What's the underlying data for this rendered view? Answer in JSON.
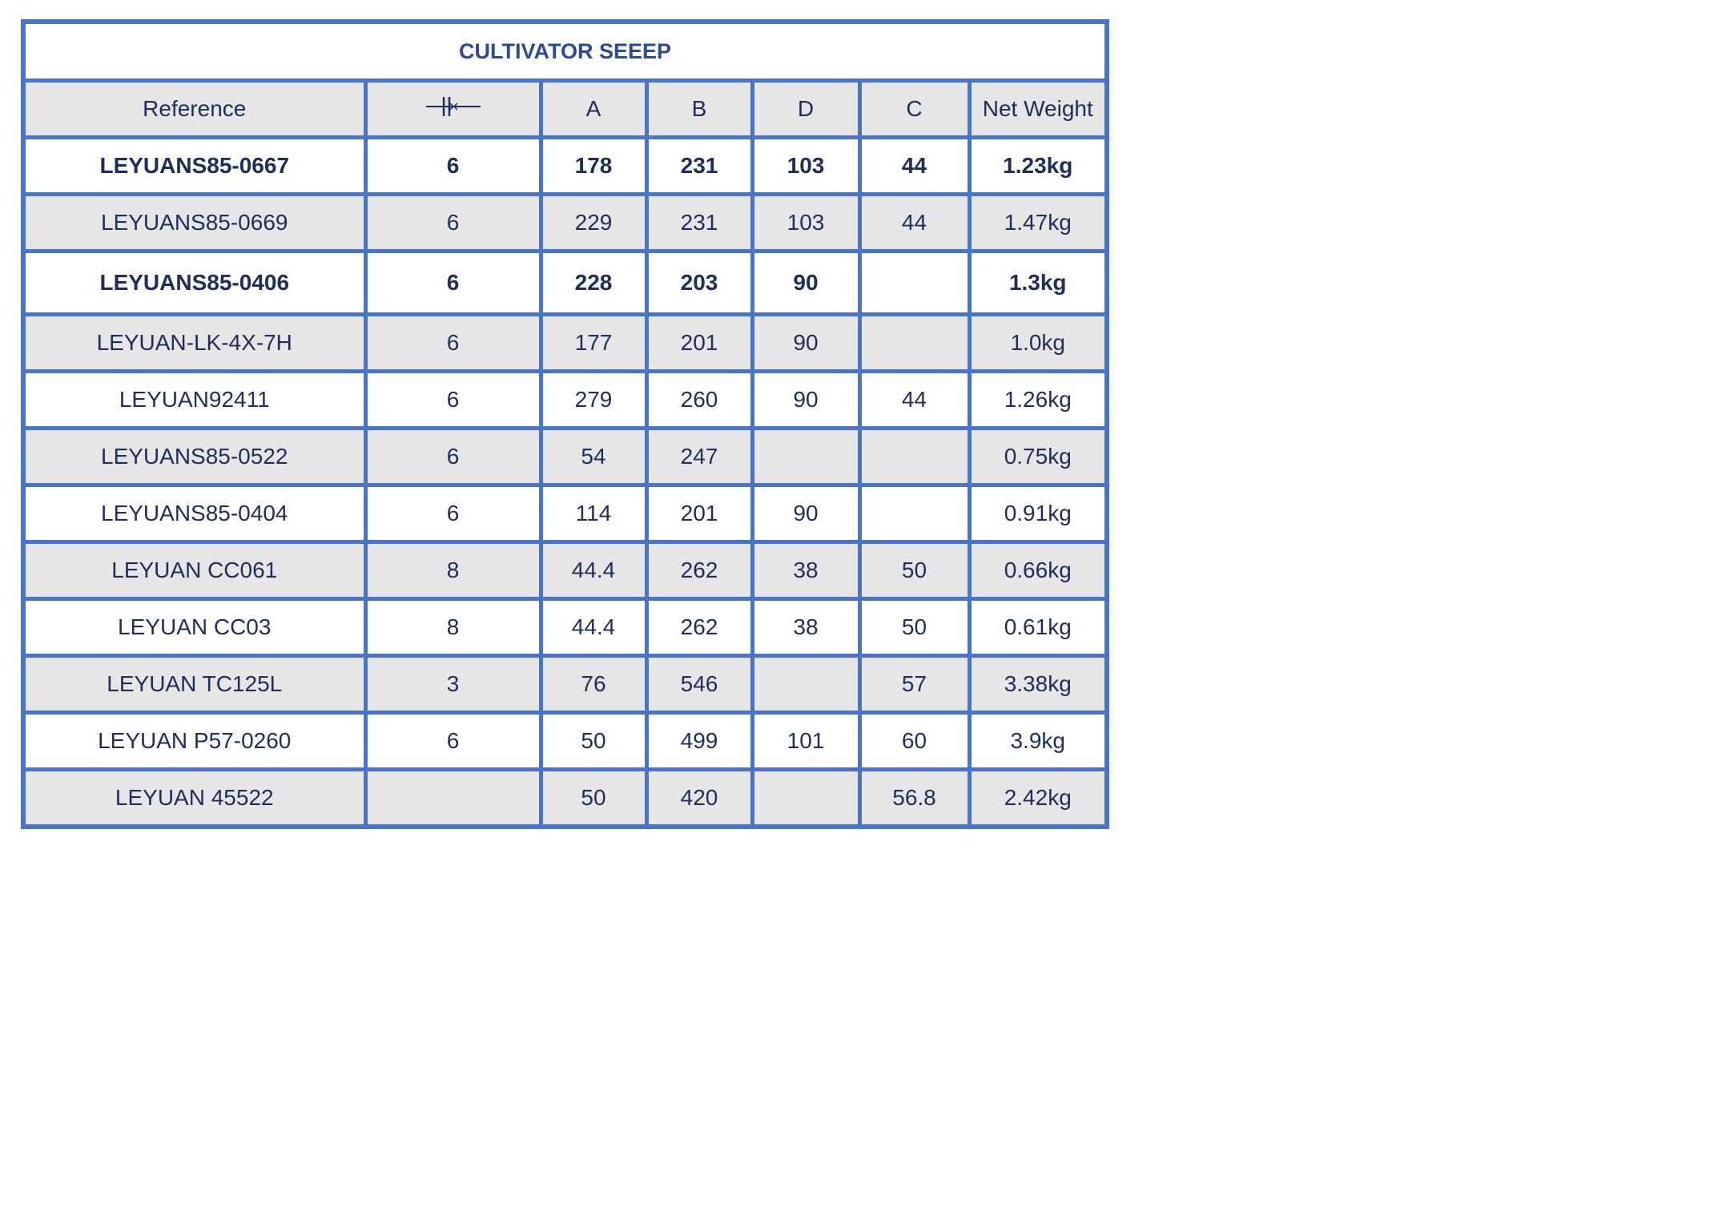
{
  "table": {
    "title": "CULTIVATOR SEEEP",
    "headers": [
      "Reference",
      "",
      "A",
      "B",
      "D",
      "C",
      "Net Weight"
    ],
    "header_icons": {
      "1": "flange-spacing-icon"
    },
    "border_color": "#4a74c9",
    "stripe_color": "#e6e6e6",
    "text_color": "#1f2d5a",
    "rows": [
      {
        "bold": true,
        "cells": [
          "LEYUANS85-0667",
          "6",
          "178",
          "231",
          "103",
          "44",
          "1.23kg"
        ]
      },
      {
        "bold": false,
        "cells": [
          "LEYUANS85-0669",
          "6",
          "229",
          "231",
          "103",
          "44",
          "1.47kg"
        ]
      },
      {
        "bold": true,
        "cells": [
          "LEYUANS85-0406",
          "6",
          "228",
          "203",
          "90",
          "",
          "1.3kg"
        ]
      },
      {
        "bold": false,
        "cells": [
          "LEYUAN-LK-4X-7H",
          "6",
          "177",
          "201",
          "90",
          "",
          "1.0kg"
        ]
      },
      {
        "bold": false,
        "cells": [
          "LEYUAN92411",
          "6",
          "279",
          "260",
          "90",
          "44",
          "1.26kg"
        ]
      },
      {
        "bold": false,
        "cells": [
          "LEYUANS85-0522",
          "6",
          "54",
          "247",
          "",
          "",
          "0.75kg"
        ]
      },
      {
        "bold": false,
        "cells": [
          "LEYUANS85-0404",
          "6",
          "114",
          "201",
          "90",
          "",
          "0.91kg"
        ]
      },
      {
        "bold": false,
        "cells": [
          "LEYUAN CC061",
          "8",
          "44.4",
          "262",
          "38",
          "50",
          "0.66kg"
        ]
      },
      {
        "bold": false,
        "cells": [
          "LEYUAN CC03",
          "8",
          "44.4",
          "262",
          "38",
          "50",
          "0.61kg"
        ]
      },
      {
        "bold": false,
        "cells": [
          "LEYUAN TC125L",
          "3",
          "76",
          "546",
          "",
          "57",
          "3.38kg"
        ]
      },
      {
        "bold": false,
        "cells": [
          "LEYUAN P57-0260",
          "6",
          "50",
          "499",
          "101",
          "60",
          "3.9kg"
        ]
      },
      {
        "bold": false,
        "cells": [
          "LEYUAN 45522",
          "",
          "50",
          "420",
          "",
          "56.8",
          "2.42kg"
        ]
      }
    ]
  }
}
